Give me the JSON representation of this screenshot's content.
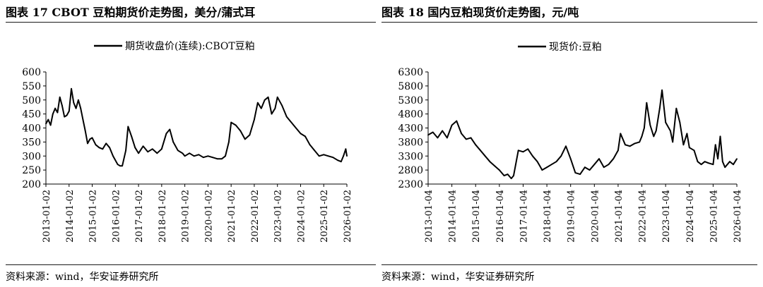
{
  "titles": {
    "left": "图表 17 CBOT 豆粕期货价走势图，美分/蒲式耳",
    "right": "图表 18 国内豆粕现货价走势图，元/吨"
  },
  "sources": {
    "left": "资料来源：wind，华安证券研究所",
    "right": "资料来源：wind，华安证券研究所"
  },
  "colors": {
    "line": "#000000",
    "rule": "#1a1a1a"
  },
  "chart_data": [
    {
      "type": "line",
      "legend": "期货收盘价(连续):CBOT豆粕",
      "legend_placement": "top",
      "grid": false,
      "x_ticks": [
        "2013-01-02",
        "2014-01-02",
        "2015-01-02",
        "2016-01-02",
        "2017-01-02",
        "2018-01-02",
        "2019-01-02",
        "2020-01-02",
        "2021-01-02",
        "2022-01-02",
        "2023-01-02",
        "2024-01-02",
        "2025-01-02",
        "2026-01-02"
      ],
      "y_ticks": [
        "200",
        "250",
        "300",
        "350",
        "400",
        "450",
        "500",
        "550",
        "600"
      ],
      "ylim": [
        200,
        600
      ],
      "xlim": [
        2013.0,
        2026.0
      ],
      "series": [
        {
          "name": "期货收盘价(连续):CBOT豆粕",
          "x": [
            2013.0,
            2013.1,
            2013.2,
            2013.3,
            2013.4,
            2013.5,
            2013.6,
            2013.7,
            2013.8,
            2013.9,
            2014.0,
            2014.1,
            2014.2,
            2014.3,
            2014.4,
            2014.5,
            2014.6,
            2014.7,
            2014.8,
            2014.9,
            2015.0,
            2015.15,
            2015.3,
            2015.45,
            2015.6,
            2015.75,
            2015.9,
            2016.0,
            2016.1,
            2016.2,
            2016.3,
            2016.45,
            2016.55,
            2016.7,
            2016.85,
            2017.0,
            2017.2,
            2017.4,
            2017.6,
            2017.8,
            2018.0,
            2018.2,
            2018.35,
            2018.5,
            2018.7,
            2018.9,
            2019.0,
            2019.2,
            2019.4,
            2019.6,
            2019.8,
            2020.0,
            2020.2,
            2020.4,
            2020.6,
            2020.75,
            2020.9,
            2021.0,
            2021.2,
            2021.4,
            2021.6,
            2021.8,
            2022.0,
            2022.15,
            2022.3,
            2022.45,
            2022.6,
            2022.75,
            2022.9,
            2023.0,
            2023.2,
            2023.4,
            2023.6,
            2023.8,
            2024.0,
            2024.2,
            2024.4,
            2024.6,
            2024.8,
            2025.0,
            2025.2,
            2025.4,
            2025.6,
            2025.75,
            2025.85,
            2025.95,
            2026.0
          ],
          "values": [
            415,
            430,
            410,
            450,
            470,
            455,
            510,
            480,
            440,
            445,
            460,
            540,
            490,
            470,
            500,
            470,
            430,
            390,
            345,
            360,
            365,
            340,
            330,
            325,
            345,
            330,
            300,
            285,
            270,
            265,
            265,
            320,
            405,
            370,
            330,
            310,
            335,
            315,
            325,
            310,
            325,
            380,
            395,
            350,
            320,
            310,
            300,
            310,
            300,
            305,
            295,
            300,
            295,
            290,
            290,
            300,
            350,
            420,
            410,
            390,
            360,
            375,
            430,
            490,
            470,
            500,
            510,
            450,
            470,
            510,
            480,
            440,
            420,
            400,
            380,
            370,
            340,
            320,
            300,
            305,
            300,
            295,
            285,
            280,
            300,
            325,
            300
          ]
        }
      ]
    },
    {
      "type": "line",
      "legend": "现货价:豆粕",
      "legend_placement": "top",
      "grid": false,
      "x_ticks": [
        "2013-01-04",
        "2014-01-04",
        "2015-01-04",
        "2016-01-04",
        "2017-01-04",
        "2018-01-04",
        "2019-01-04",
        "2020-01-04",
        "2021-01-04",
        "2022-01-04",
        "2023-01-04",
        "2024-01-04",
        "2025-01-04",
        "2026-01-04"
      ],
      "y_ticks": [
        "2300",
        "2800",
        "3300",
        "3800",
        "4300",
        "4800",
        "5300",
        "5800",
        "6300"
      ],
      "ylim": [
        2300,
        6300
      ],
      "xlim": [
        2013.0,
        2026.0
      ],
      "series": [
        {
          "name": "现货价:豆粕",
          "x": [
            2013.0,
            2013.2,
            2013.4,
            2013.6,
            2013.8,
            2014.0,
            2014.2,
            2014.4,
            2014.6,
            2014.8,
            2015.0,
            2015.2,
            2015.4,
            2015.6,
            2015.8,
            2016.0,
            2016.2,
            2016.35,
            2016.5,
            2016.6,
            2016.8,
            2017.0,
            2017.2,
            2017.4,
            2017.6,
            2017.8,
            2018.0,
            2018.2,
            2018.4,
            2018.6,
            2018.8,
            2019.0,
            2019.2,
            2019.4,
            2019.6,
            2019.8,
            2020.0,
            2020.2,
            2020.4,
            2020.6,
            2020.8,
            2021.0,
            2021.1,
            2021.3,
            2021.5,
            2021.7,
            2021.9,
            2022.0,
            2022.1,
            2022.2,
            2022.35,
            2022.5,
            2022.6,
            2022.75,
            2022.85,
            2023.0,
            2023.2,
            2023.3,
            2023.45,
            2023.6,
            2023.75,
            2023.9,
            2024.0,
            2024.2,
            2024.35,
            2024.5,
            2024.65,
            2024.8,
            2025.0,
            2025.1,
            2025.2,
            2025.3,
            2025.4,
            2025.5,
            2025.7,
            2025.85,
            2026.0
          ],
          "values": [
            4050,
            4150,
            3950,
            4200,
            3950,
            4400,
            4550,
            4100,
            3900,
            3950,
            3700,
            3500,
            3300,
            3100,
            2950,
            2800,
            2600,
            2650,
            2500,
            2600,
            3500,
            3450,
            3550,
            3300,
            3100,
            2800,
            2900,
            3000,
            3100,
            3300,
            3650,
            3200,
            2700,
            2650,
            2900,
            2800,
            3000,
            3200,
            2900,
            3000,
            3200,
            3500,
            4100,
            3700,
            3650,
            3750,
            3800,
            4000,
            4300,
            5200,
            4400,
            4000,
            4200,
            5000,
            5650,
            4500,
            4200,
            3800,
            5000,
            4500,
            3700,
            4100,
            3600,
            3500,
            3100,
            3000,
            3100,
            3050,
            3000,
            3700,
            3200,
            4000,
            3100,
            2900,
            3100,
            3000,
            3200
          ]
        }
      ]
    }
  ]
}
